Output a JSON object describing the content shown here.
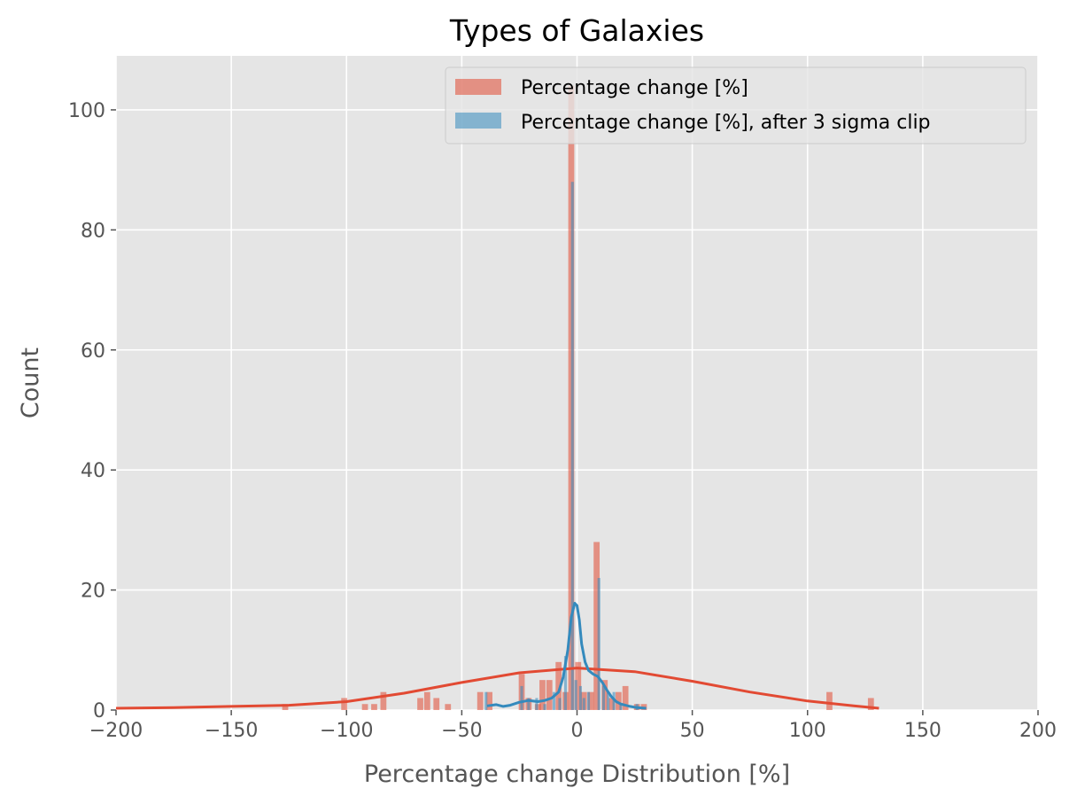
{
  "chart_data": {
    "type": "bar",
    "title": "Types of Galaxies",
    "xlabel": "Percentage change Distribution [%]",
    "ylabel": "Count",
    "xlim": [
      -200,
      200
    ],
    "ylim": [
      0,
      109
    ],
    "xticks": [
      -200,
      -150,
      -100,
      -50,
      0,
      50,
      100,
      150,
      200
    ],
    "xtick_labels": [
      "−200",
      "−150",
      "−100",
      "−50",
      "0",
      "50",
      "100",
      "150",
      "200"
    ],
    "yticks": [
      0,
      20,
      40,
      60,
      80,
      100
    ],
    "ytick_labels": [
      "0",
      "20",
      "40",
      "60",
      "80",
      "100"
    ],
    "grid": true,
    "legend_position": "top-right",
    "colors": {
      "background": "#E5E5E5",
      "grid": "#FFFFFF",
      "series1": "#E24A33",
      "series2": "#348ABD"
    },
    "series": [
      {
        "name": "Percentage change [%]",
        "bin_width": 2.6,
        "bins": [
          [
            -126.6,
            1
          ],
          [
            -101.0,
            2
          ],
          [
            -92.0,
            1
          ],
          [
            -88.0,
            1
          ],
          [
            -84.0,
            3
          ],
          [
            -68.0,
            2
          ],
          [
            -65.0,
            3
          ],
          [
            -61.0,
            2
          ],
          [
            -56.0,
            1
          ],
          [
            -42.0,
            3
          ],
          [
            -38.0,
            3
          ],
          [
            -24.0,
            6
          ],
          [
            -21.0,
            2
          ],
          [
            -17.0,
            1
          ],
          [
            -15.0,
            5
          ],
          [
            -12.0,
            5
          ],
          [
            -8.0,
            8
          ],
          [
            -5.0,
            3
          ],
          [
            -2.5,
            104
          ],
          [
            0.5,
            8
          ],
          [
            3.0,
            3
          ],
          [
            6.0,
            3
          ],
          [
            8.5,
            28
          ],
          [
            12.0,
            5
          ],
          [
            15.0,
            2
          ],
          [
            18.0,
            3
          ],
          [
            21.0,
            4
          ],
          [
            26.0,
            1
          ],
          [
            29.0,
            1
          ],
          [
            109.5,
            3
          ],
          [
            127.5,
            2
          ]
        ],
        "kde": [
          [
            -200,
            0.3
          ],
          [
            -175,
            0.4
          ],
          [
            -150,
            0.6
          ],
          [
            -125,
            0.8
          ],
          [
            -100,
            1.4
          ],
          [
            -75,
            2.8
          ],
          [
            -50,
            4.6
          ],
          [
            -25,
            6.2
          ],
          [
            0,
            7.0
          ],
          [
            25,
            6.4
          ],
          [
            50,
            4.8
          ],
          [
            75,
            3.0
          ],
          [
            100,
            1.5
          ],
          [
            120,
            0.7
          ],
          [
            131,
            0.3
          ]
        ]
      },
      {
        "name": "Percentage change [%], after 3 sigma clip",
        "bin_width": 1.2,
        "bins": [
          [
            -39.5,
            3
          ],
          [
            -24.0,
            4
          ],
          [
            -21.0,
            2
          ],
          [
            -17.5,
            2
          ],
          [
            -14.0,
            1
          ],
          [
            -10.0,
            3
          ],
          [
            -7.5,
            2
          ],
          [
            -5.0,
            9
          ],
          [
            -2.0,
            88
          ],
          [
            -0.5,
            5
          ],
          [
            1.5,
            4
          ],
          [
            3.0,
            2
          ],
          [
            5.0,
            3
          ],
          [
            9.5,
            22
          ],
          [
            11.5,
            4
          ],
          [
            13.5,
            3
          ],
          [
            16.0,
            3
          ],
          [
            19.0,
            1
          ],
          [
            26.0,
            1
          ]
        ],
        "kde": [
          [
            -39,
            0.7
          ],
          [
            -35,
            0.9
          ],
          [
            -32,
            0.6
          ],
          [
            -29,
            0.8
          ],
          [
            -25,
            1.3
          ],
          [
            -21,
            1.6
          ],
          [
            -17,
            1.4
          ],
          [
            -14,
            1.6
          ],
          [
            -11,
            2.0
          ],
          [
            -8,
            3.0
          ],
          [
            -6,
            5.5
          ],
          [
            -4,
            10.0
          ],
          [
            -2.5,
            15.5
          ],
          [
            -1,
            17.8
          ],
          [
            0,
            17.4
          ],
          [
            1,
            15.0
          ],
          [
            2,
            11.0
          ],
          [
            3.5,
            8.0
          ],
          [
            5,
            6.6
          ],
          [
            7,
            6.0
          ],
          [
            9,
            5.6
          ],
          [
            11,
            4.6
          ],
          [
            13,
            3.3
          ],
          [
            15,
            2.2
          ],
          [
            17,
            1.4
          ],
          [
            19,
            1.0
          ],
          [
            21,
            0.8
          ],
          [
            23,
            0.6
          ],
          [
            26,
            0.4
          ],
          [
            30,
            0.3
          ]
        ]
      }
    ]
  }
}
